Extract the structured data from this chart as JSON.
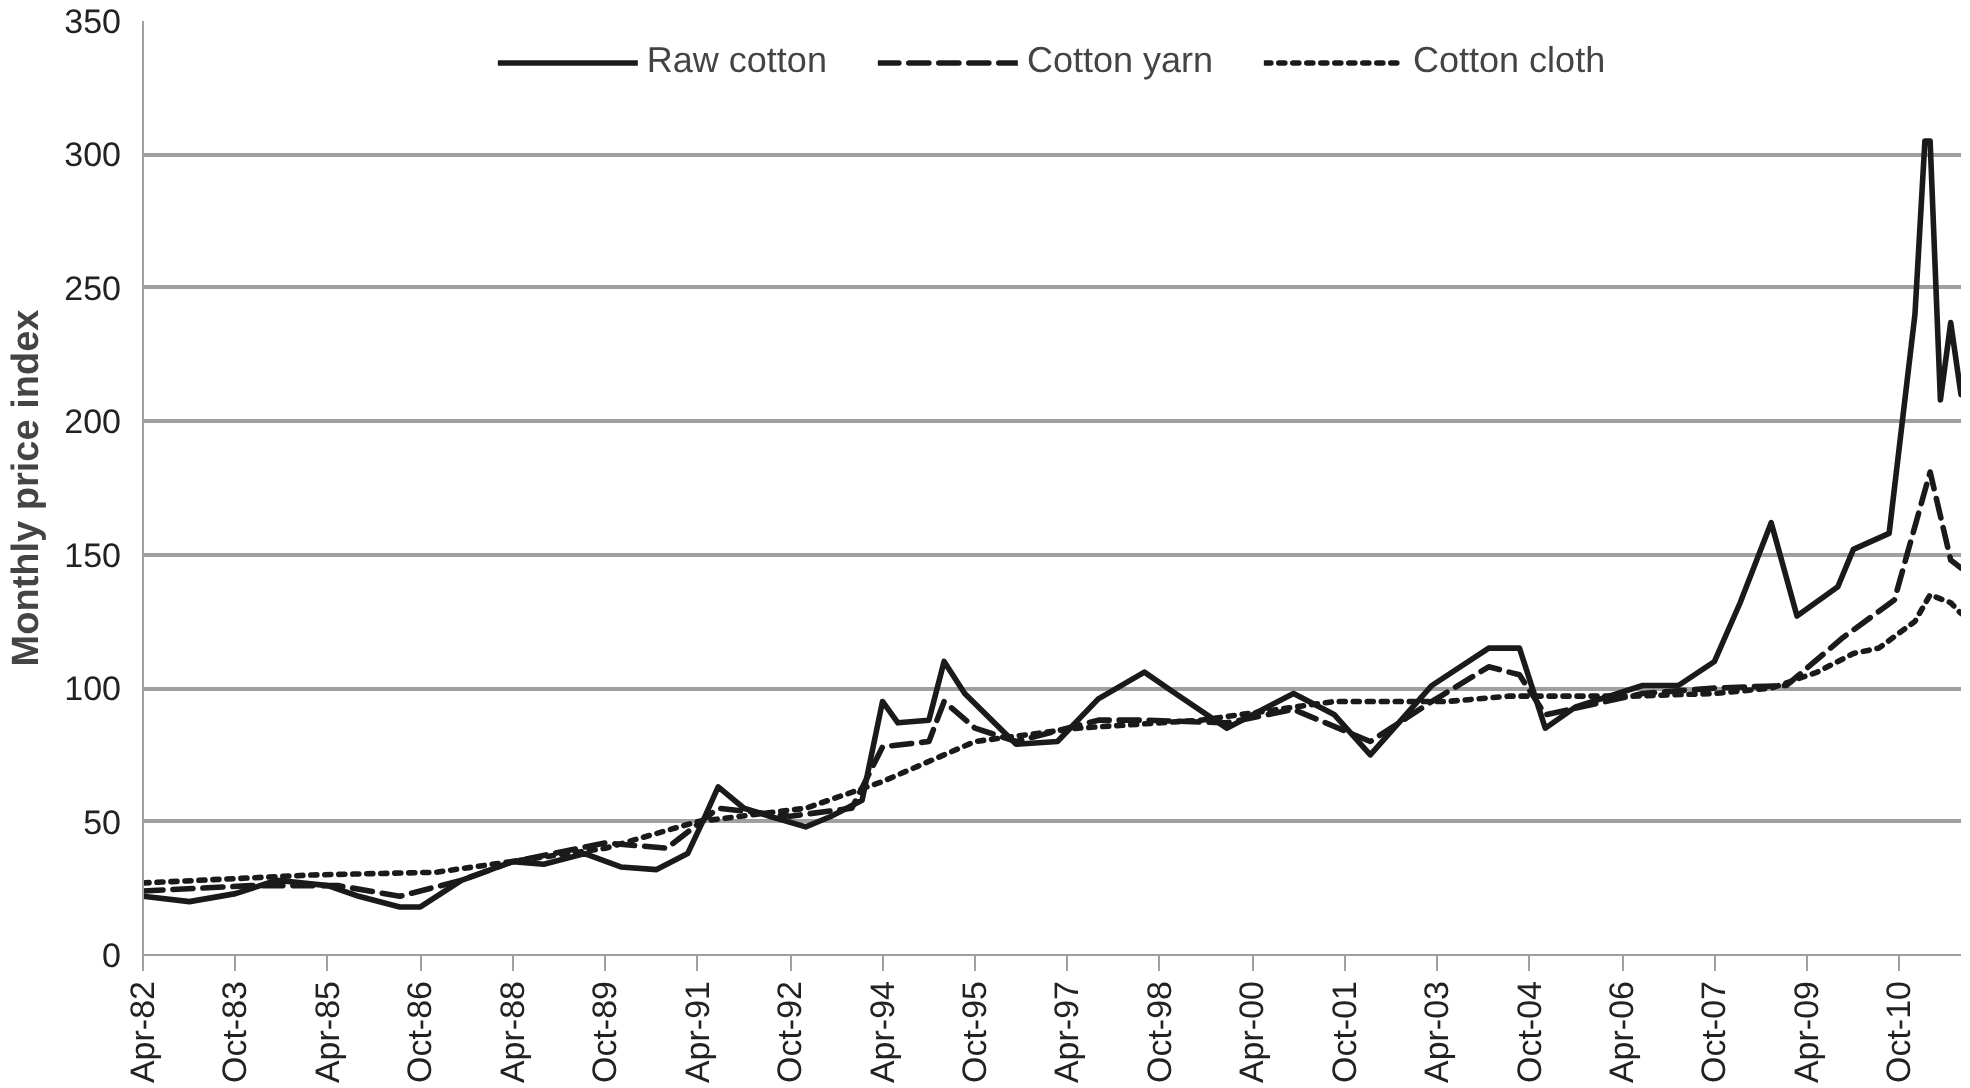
{
  "chart_data": {
    "type": "line",
    "ylabel": "Monthly price index",
    "ylim": [
      0,
      350
    ],
    "yticks": [
      0,
      50,
      100,
      150,
      200,
      250,
      300,
      350
    ],
    "xlim": [
      "1982-04",
      "2011-10"
    ],
    "xticks": [
      {
        "value": "1982-04",
        "label": "Apr-82"
      },
      {
        "value": "1983-10",
        "label": "Oct-83"
      },
      {
        "value": "1985-04",
        "label": "Apr-85"
      },
      {
        "value": "1986-10",
        "label": "Oct-86"
      },
      {
        "value": "1988-04",
        "label": "Apr-88"
      },
      {
        "value": "1989-10",
        "label": "Oct-89"
      },
      {
        "value": "1991-04",
        "label": "Apr-91"
      },
      {
        "value": "1992-10",
        "label": "Oct-92"
      },
      {
        "value": "1994-04",
        "label": "Apr-94"
      },
      {
        "value": "1995-10",
        "label": "Oct-95"
      },
      {
        "value": "1997-04",
        "label": "Apr-97"
      },
      {
        "value": "1998-10",
        "label": "Oct-98"
      },
      {
        "value": "2000-04",
        "label": "Apr-00"
      },
      {
        "value": "2001-10",
        "label": "Oct-01"
      },
      {
        "value": "2003-04",
        "label": "Apr-03"
      },
      {
        "value": "2004-10",
        "label": "Oct-04"
      },
      {
        "value": "2006-04",
        "label": "Apr-06"
      },
      {
        "value": "2007-10",
        "label": "Oct-07"
      },
      {
        "value": "2009-04",
        "label": "Apr-09"
      },
      {
        "value": "2010-10",
        "label": "Oct-10"
      }
    ],
    "grid": "y",
    "legend": "top",
    "marker": "none",
    "series": [
      {
        "name": "Raw cotton",
        "color": "#1a1a1a",
        "line_style": "solid",
        "x": [
          "1982-04",
          "1983-01",
          "1983-10",
          "1984-06",
          "1985-04",
          "1985-10",
          "1986-06",
          "1986-10",
          "1987-06",
          "1988-04",
          "1988-10",
          "1989-06",
          "1990-01",
          "1990-08",
          "1991-02",
          "1991-05",
          "1991-08",
          "1992-01",
          "1992-06",
          "1993-01",
          "1993-06",
          "1993-12",
          "1994-04",
          "1994-07",
          "1995-01",
          "1995-04",
          "1995-08",
          "1996-06",
          "1997-02",
          "1997-10",
          "1998-07",
          "1999-01",
          "1999-11",
          "2000-12",
          "2001-08",
          "2002-03",
          "2003-03",
          "2004-02",
          "2004-08",
          "2005-01",
          "2005-07",
          "2006-08",
          "2007-03",
          "2007-10",
          "2008-03",
          "2008-09",
          "2009-02",
          "2009-10",
          "2010-01",
          "2010-08",
          "2011-01",
          "2011-03",
          "2011-04",
          "2011-06",
          "2011-08",
          "2011-10"
        ],
        "values": [
          22,
          20,
          23,
          28,
          26,
          22,
          18,
          18,
          28,
          35,
          34,
          38,
          33,
          32,
          38,
          50,
          63,
          55,
          52,
          48,
          52,
          58,
          95,
          87,
          88,
          110,
          98,
          79,
          80,
          96,
          106,
          98,
          85,
          98,
          90,
          75,
          101,
          115,
          115,
          85,
          93,
          101,
          101,
          110,
          132,
          162,
          127,
          138,
          152,
          158,
          240,
          305,
          305,
          208,
          237,
          210
        ]
      },
      {
        "name": "Cotton yarn",
        "color": "#1a1a1a",
        "line_style": "dashed",
        "x": [
          "1982-04",
          "1984-01",
          "1985-06",
          "1986-06",
          "1987-06",
          "1988-04",
          "1989-10",
          "1990-10",
          "1991-08",
          "1992-10",
          "1993-10",
          "1994-04",
          "1995-01",
          "1995-04",
          "1995-10",
          "1996-06",
          "1997-10",
          "1998-07",
          "1999-11",
          "2000-12",
          "2002-03",
          "2003-03",
          "2004-02",
          "2004-08",
          "2005-01",
          "2006-08",
          "2007-10",
          "2008-12",
          "2009-11",
          "2010-09",
          "2011-04",
          "2011-08",
          "2011-10"
        ],
        "values": [
          24,
          26,
          26,
          22,
          28,
          35,
          42,
          40,
          55,
          52,
          55,
          78,
          80,
          95,
          85,
          80,
          88,
          88,
          87,
          92,
          80,
          95,
          108,
          105,
          90,
          98,
          100,
          101,
          119,
          133,
          181,
          148,
          145
        ]
      },
      {
        "name": "Cotton cloth",
        "color": "#1a1a1a",
        "line_style": "dotted",
        "x": [
          "1982-04",
          "1985-01",
          "1987-01",
          "1989-10",
          "1991-04",
          "1993-01",
          "1994-04",
          "1995-04",
          "1995-10",
          "1997-06",
          "1999-06",
          "2001-08",
          "2003-06",
          "2004-06",
          "2006-06",
          "2007-10",
          "2008-09",
          "2009-06",
          "2010-01",
          "2010-06",
          "2011-01",
          "2011-04",
          "2011-08",
          "2011-10"
        ],
        "values": [
          27,
          30,
          31,
          40,
          50,
          55,
          65,
          75,
          80,
          85,
          88,
          95,
          95,
          97,
          97,
          98,
          100,
          106,
          113,
          115,
          125,
          135,
          132,
          128
        ]
      }
    ]
  }
}
